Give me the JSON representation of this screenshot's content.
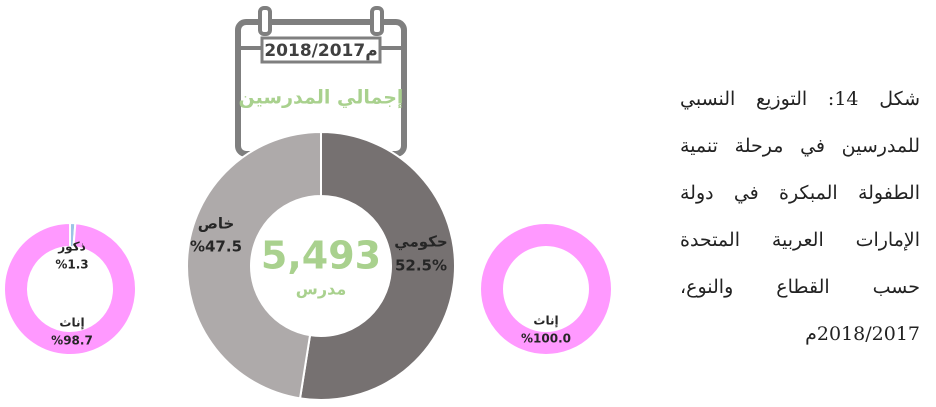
{
  "header": {
    "period": "2018/2017م",
    "title": "إجمالي المدرسين"
  },
  "caption": [
    "شكل 14: التوزيع النسبي",
    "للمدرسين في مرحلة تنمية",
    "الطفولة المبكرة في دولة",
    "الإمارات العربية المتحدة",
    "حسب القطاع والنوع،",
    "2018/2017م"
  ],
  "chart_data": [
    {
      "type": "donut",
      "categories": [
        "ذكور",
        "إناث"
      ],
      "values": [
        1.3,
        98.7
      ],
      "value_labels": [
        "%1.3",
        "%98.7"
      ],
      "colors": [
        "#9dc3e6",
        "#ff99ff"
      ]
    },
    {
      "type": "donut",
      "categories": [
        "حكومي",
        "خاص"
      ],
      "values": [
        52.5,
        47.5
      ],
      "value_labels": [
        "52.5%",
        "%47.5"
      ],
      "colors": [
        "#767171",
        "#aeaaaa"
      ],
      "total": 5493,
      "total_label": "5,493",
      "total_unit": "مدرس"
    },
    {
      "type": "donut",
      "categories": [
        "إناث"
      ],
      "values": [
        100.0
      ],
      "value_labels": [
        "%100.0"
      ],
      "colors": [
        "#ff99ff"
      ]
    }
  ]
}
